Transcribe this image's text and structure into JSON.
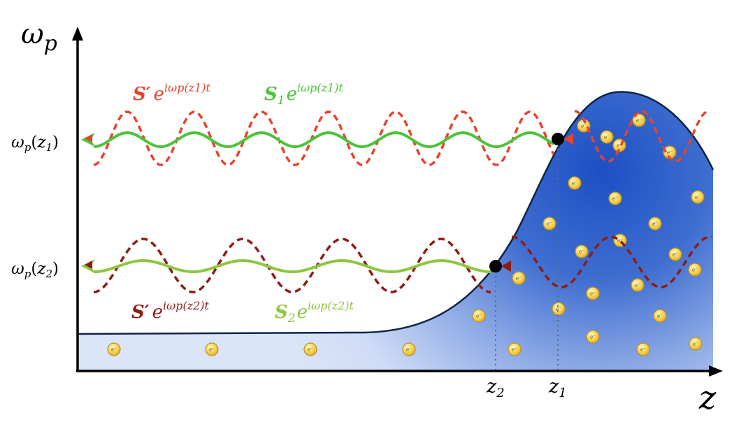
{
  "axes": {
    "y_label": {
      "base": "ω",
      "sub": "p"
    },
    "x_label": "z",
    "x_ticks": [
      {
        "base": "z",
        "sub": "2"
      },
      {
        "base": "z",
        "sub": "1"
      }
    ],
    "y_ticks": [
      {
        "text": "ωp(z1)",
        "base": "ω",
        "sub": "p",
        "arg_open": "(",
        "arg_base": "z",
        "arg_sub": "1",
        "arg_close": ")"
      },
      {
        "text": "ωp(z2)",
        "base": "ω",
        "sub": "p",
        "arg_open": "(",
        "arg_base": "z",
        "arg_sub": "2",
        "arg_close": ")"
      }
    ]
  },
  "labels": {
    "s_prime_z1": {
      "symbol": "S′",
      "exp_base": "e",
      "exponent": "iωp(z1)t"
    },
    "s1": {
      "symbol": "S",
      "symbol_sub": "1",
      "exp_base": "e",
      "exponent": "iωp(z1)t"
    },
    "s_prime_z2": {
      "symbol": "S′",
      "exp_base": "e",
      "exponent": "iωp(z2)t"
    },
    "s2": {
      "symbol": "S",
      "symbol_sub": "2",
      "exp_base": "e",
      "exponent": "iωp(z2)t"
    }
  },
  "electron_label": "e⁻",
  "colors": {
    "axis": "#000000",
    "plasma_dark": "#1d4fc4",
    "plasma_light": "#cfdcf6",
    "profile_line": "#0d2447",
    "red_wave": "#e8432b",
    "darkred_wave": "#8e1c14",
    "green_wave_1": "#4cc33a",
    "green_wave_2": "#8dc63f",
    "electron_fill": "#f6d14a",
    "electron_stroke": "#b8902a",
    "guide_line": "#666666"
  }
}
